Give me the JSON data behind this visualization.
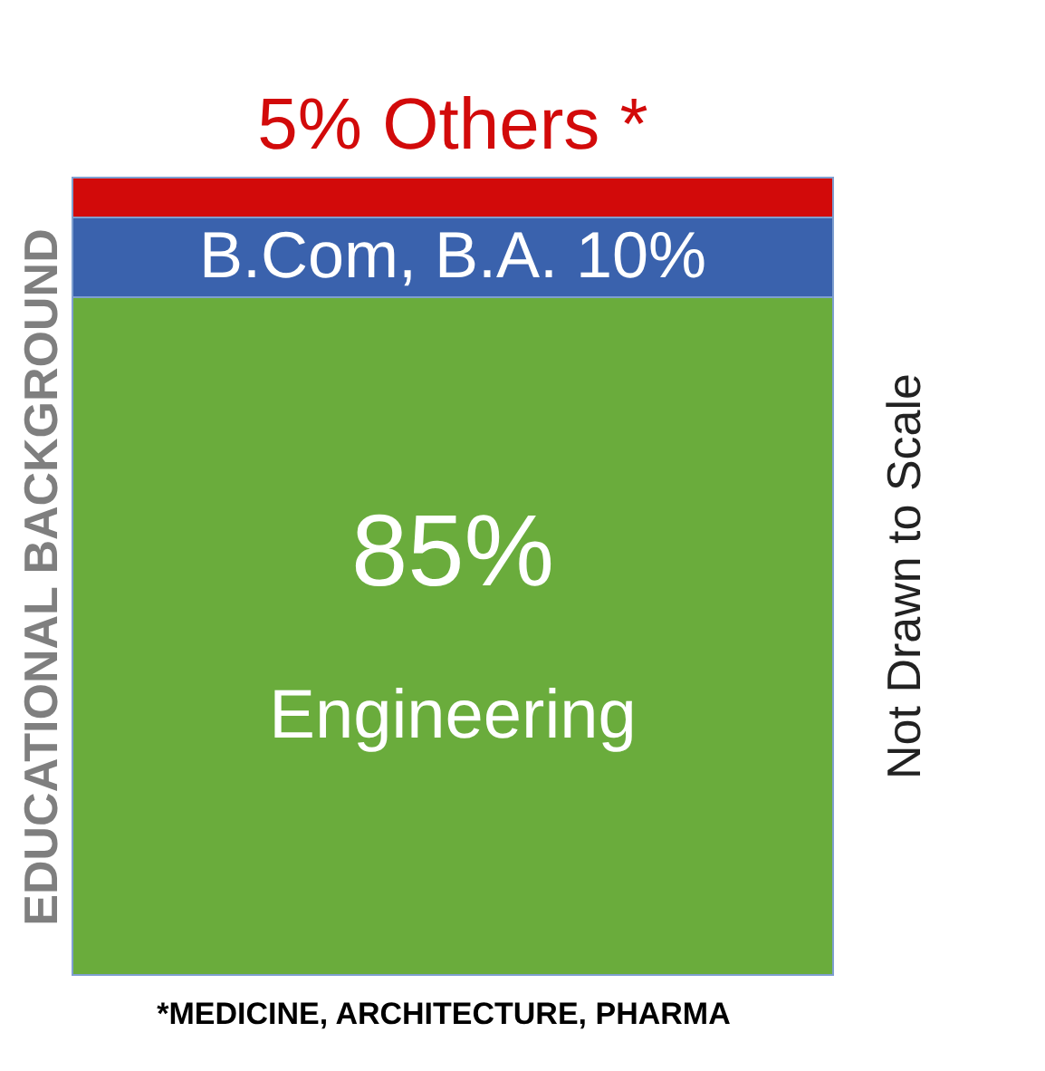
{
  "chart_data": {
    "type": "bar",
    "stacked": true,
    "categories": [
      null
    ],
    "ylabel": "EDUCATIONAL BACKGROUND",
    "ylim": [
      0,
      100
    ],
    "tick_labels": false,
    "grid": false,
    "series": [
      {
        "name": "Engineering",
        "color": "#6aac3c",
        "values": [
          85
        ],
        "value_labels": [
          "85%"
        ]
      },
      {
        "name": "B.Com, B.A.",
        "color": "#3a62ad",
        "values": [
          10
        ],
        "value_labels": [
          "10%"
        ]
      },
      {
        "name": "Others *",
        "color": "#d20a0a",
        "values": [
          5
        ],
        "value_labels": [
          "5%"
        ]
      }
    ],
    "annotations": [
      "Not Drawn to Scale",
      "*MEDICINE,  ARCHITECTURE, PHARMA"
    ]
  }
}
